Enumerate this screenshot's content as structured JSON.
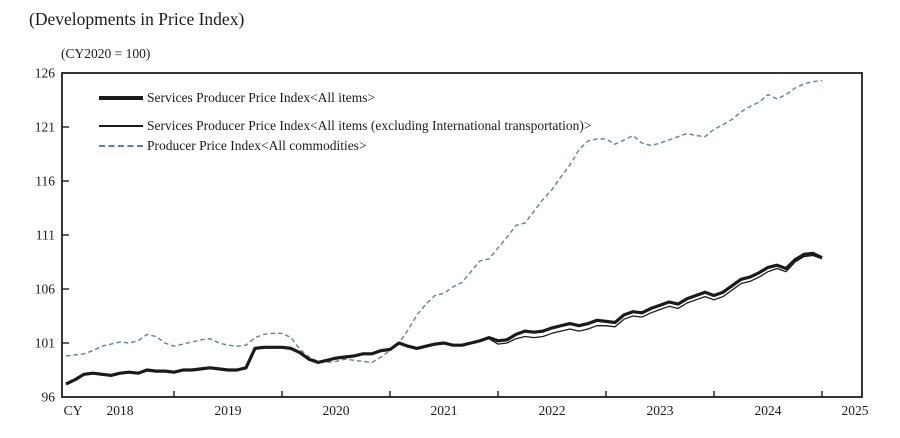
{
  "figure": {
    "title": "(Developments in Price Index)",
    "unit_note": "(CY2020 = 100)",
    "x_axis_prefix": "CY"
  },
  "chart_data": {
    "type": "line",
    "title": "(Developments in Price Index)",
    "unit_note": "(CY2020 = 100)",
    "ylim": [
      96,
      126
    ],
    "yticks": [
      96,
      101,
      106,
      111,
      116,
      121,
      126
    ],
    "xticklabels": [
      "2018",
      "2019",
      "2020",
      "2021",
      "2022",
      "2023",
      "2024",
      "2025"
    ],
    "grid": false,
    "legend_position": "top-left-inside",
    "ink_color": "#1f1f1f",
    "x": [
      "2018-01",
      "2018-02",
      "2018-03",
      "2018-04",
      "2018-05",
      "2018-06",
      "2018-07",
      "2018-08",
      "2018-09",
      "2018-10",
      "2018-11",
      "2018-12",
      "2019-01",
      "2019-02",
      "2019-03",
      "2019-04",
      "2019-05",
      "2019-06",
      "2019-07",
      "2019-08",
      "2019-09",
      "2019-10",
      "2019-11",
      "2019-12",
      "2020-01",
      "2020-02",
      "2020-03",
      "2020-04",
      "2020-05",
      "2020-06",
      "2020-07",
      "2020-08",
      "2020-09",
      "2020-10",
      "2020-11",
      "2020-12",
      "2021-01",
      "2021-02",
      "2021-03",
      "2021-04",
      "2021-05",
      "2021-06",
      "2021-07",
      "2021-08",
      "2021-09",
      "2021-10",
      "2021-11",
      "2021-12",
      "2022-01",
      "2022-02",
      "2022-03",
      "2022-04",
      "2022-05",
      "2022-06",
      "2022-07",
      "2022-08",
      "2022-09",
      "2022-10",
      "2022-11",
      "2022-12",
      "2023-01",
      "2023-02",
      "2023-03",
      "2023-04",
      "2023-05",
      "2023-06",
      "2023-07",
      "2023-08",
      "2023-09",
      "2023-10",
      "2023-11",
      "2023-12",
      "2024-01",
      "2024-02",
      "2024-03",
      "2024-04",
      "2024-05",
      "2024-06",
      "2024-07",
      "2024-08",
      "2024-09",
      "2024-10",
      "2024-11",
      "2024-12",
      "2025-01"
    ],
    "series": [
      {
        "name": "Services Producer Price Index<All items>",
        "style": "thick-solid-black",
        "color": "#1a1a1a",
        "values": [
          97.2,
          97.6,
          98.1,
          98.2,
          98.1,
          98.0,
          98.2,
          98.3,
          98.2,
          98.5,
          98.4,
          98.4,
          98.3,
          98.5,
          98.5,
          98.6,
          98.7,
          98.6,
          98.5,
          98.5,
          98.7,
          100.5,
          100.6,
          100.6,
          100.6,
          100.5,
          100.1,
          99.5,
          99.2,
          99.4,
          99.6,
          99.7,
          99.8,
          100.0,
          100.0,
          100.3,
          100.4,
          101.0,
          100.7,
          100.5,
          100.7,
          100.9,
          101.0,
          100.8,
          100.8,
          101.0,
          101.2,
          101.5,
          101.2,
          101.3,
          101.8,
          102.1,
          102.0,
          102.1,
          102.4,
          102.6,
          102.8,
          102.6,
          102.8,
          103.1,
          103.0,
          102.9,
          103.6,
          103.9,
          103.8,
          104.2,
          104.5,
          104.8,
          104.6,
          105.1,
          105.4,
          105.7,
          105.4,
          105.7,
          106.3,
          106.9,
          107.1,
          107.5,
          108.0,
          108.2,
          107.9,
          108.7,
          109.2,
          109.3,
          108.9
        ]
      },
      {
        "name": "Services Producer Price Index<All items (excluding International transportation)>",
        "style": "thin-solid-black",
        "color": "#1a1a1a",
        "values": [
          97.2,
          97.6,
          98.1,
          98.2,
          98.1,
          98.0,
          98.2,
          98.3,
          98.2,
          98.5,
          98.4,
          98.4,
          98.3,
          98.5,
          98.5,
          98.6,
          98.7,
          98.6,
          98.5,
          98.5,
          98.7,
          100.5,
          100.6,
          100.6,
          100.6,
          100.5,
          100.1,
          99.5,
          99.2,
          99.4,
          99.6,
          99.7,
          99.8,
          100.0,
          100.0,
          100.3,
          100.4,
          101.0,
          100.7,
          100.5,
          100.7,
          100.9,
          101.0,
          100.8,
          100.8,
          101.0,
          101.2,
          101.4,
          100.9,
          101.0,
          101.4,
          101.6,
          101.5,
          101.6,
          101.9,
          102.1,
          102.3,
          102.1,
          102.3,
          102.6,
          102.6,
          102.5,
          103.2,
          103.5,
          103.4,
          103.8,
          104.1,
          104.4,
          104.2,
          104.7,
          105.0,
          105.3,
          105.0,
          105.3,
          105.9,
          106.5,
          106.7,
          107.1,
          107.6,
          107.9,
          107.6,
          108.5,
          109.0,
          109.1,
          108.8
        ]
      },
      {
        "name": "Producer Price Index<All commodities>",
        "style": "dashed-blue",
        "color": "#5a82a6",
        "values": [
          99.8,
          99.9,
          100.0,
          100.3,
          100.7,
          100.9,
          101.1,
          101.0,
          101.2,
          101.8,
          101.6,
          101.0,
          100.7,
          100.9,
          101.1,
          101.3,
          101.4,
          101.0,
          100.8,
          100.7,
          100.8,
          101.5,
          101.8,
          101.9,
          101.9,
          101.5,
          100.4,
          99.7,
          99.3,
          99.2,
          99.3,
          99.5,
          99.4,
          99.3,
          99.2,
          99.7,
          100.3,
          101.0,
          102.2,
          103.6,
          104.6,
          105.4,
          105.6,
          106.2,
          106.6,
          107.6,
          108.6,
          108.8,
          109.8,
          110.8,
          111.9,
          112.1,
          113.2,
          114.3,
          115.2,
          116.4,
          117.5,
          118.9,
          119.7,
          119.9,
          119.9,
          119.4,
          119.8,
          120.2,
          119.5,
          119.3,
          119.5,
          119.8,
          120.1,
          120.4,
          120.2,
          120.1,
          120.8,
          121.2,
          121.7,
          122.4,
          122.9,
          123.3,
          124.0,
          123.6,
          124.0,
          124.6,
          125.0,
          125.2,
          125.3
        ]
      }
    ]
  }
}
